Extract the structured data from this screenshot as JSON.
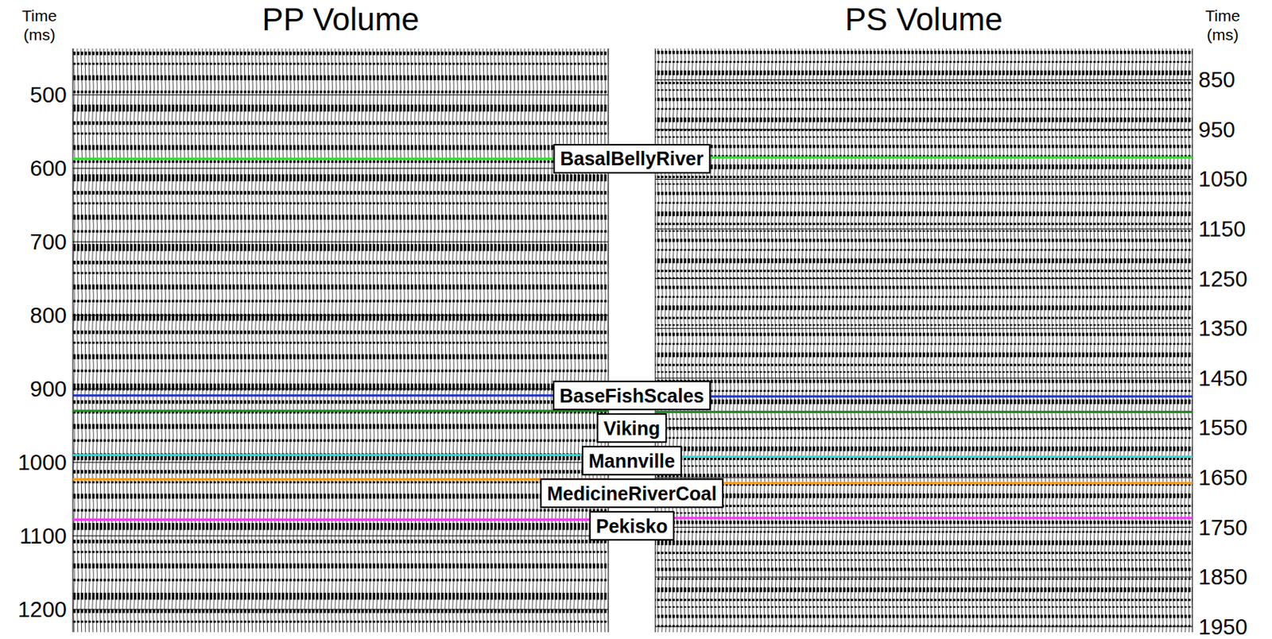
{
  "chart_data": [
    {
      "type": "seismic",
      "title": "PP Volume",
      "y_label": "Time (ms)",
      "ylim": [
        437,
        1231
      ],
      "yticks": [
        500,
        600,
        700,
        800,
        900,
        1000,
        1100,
        1200
      ],
      "series": [
        {
          "name": "BasalBellyRiver",
          "color": "#33dd33",
          "values": [
            587
          ]
        },
        {
          "name": "BaseFishScales",
          "color": "#2233cc",
          "values": [
            909
          ]
        },
        {
          "name": "Viking",
          "color": "#228b22",
          "values": [
            930
          ]
        },
        {
          "name": "Mannville",
          "color": "#33dddd",
          "values": [
            990
          ]
        },
        {
          "name": "MedicineRiverCoal",
          "color": "#ff9900",
          "values": [
            1023
          ]
        },
        {
          "name": "Pekisko",
          "color": "#ff33ff",
          "values": [
            1078
          ]
        }
      ]
    },
    {
      "type": "seismic",
      "title": "PS Volume",
      "y_label": "Time (ms)",
      "ylim": [
        787,
        1961
      ],
      "yticks": [
        850,
        950,
        1050,
        1150,
        1250,
        1350,
        1450,
        1550,
        1650,
        1750,
        1850,
        1950
      ],
      "series": [
        {
          "color": "#33dd33",
          "values": [
            1006
          ]
        },
        {
          "color": "#2233cc",
          "values": [
            1487
          ]
        },
        {
          "color": "#228b22",
          "values": [
            1518
          ]
        },
        {
          "color": "#33dddd",
          "values": [
            1608
          ]
        },
        {
          "color": "#ff9900",
          "values": [
            1661
          ]
        },
        {
          "color": "#ff33ff",
          "values": [
            1731
          ]
        }
      ]
    }
  ]
}
